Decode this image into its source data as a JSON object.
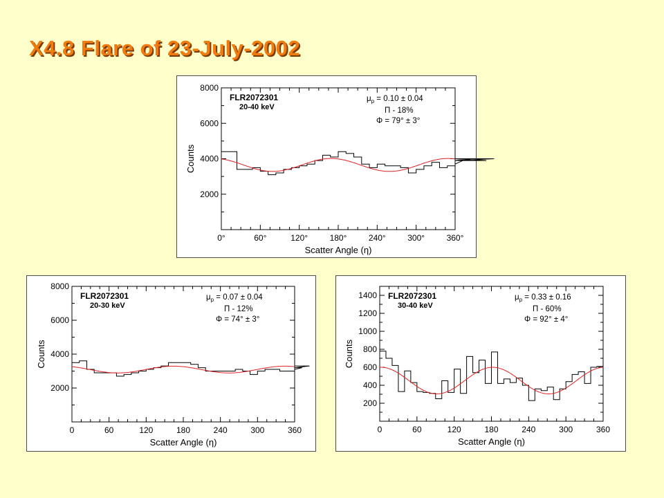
{
  "slide": {
    "title": "X4.8 Flare of 23-July-2002"
  },
  "chart_data": [
    {
      "id": "top",
      "type": "line",
      "run_label": "FLR2072301",
      "energy_label": "20-40 keV",
      "annotations": {
        "mu": "= 0.10 ± 0.04",
        "pi": "- 18%",
        "phi": "= 79° ± 3°"
      },
      "xlabel": "Scatter Angle (η)",
      "ylabel": "Counts",
      "xlim": [
        0,
        360
      ],
      "ylim": [
        0,
        8000
      ],
      "xticks": [
        0,
        60,
        120,
        180,
        240,
        300,
        360
      ],
      "xtick_labels": [
        "0°",
        "60°",
        "120°",
        "180°",
        "240°",
        "300°",
        "360°"
      ],
      "yticks": [
        2000,
        4000,
        6000,
        8000
      ],
      "ytick_labels": [
        "2000",
        "4000",
        "6000",
        "8000"
      ],
      "bin_width": 12,
      "series": [
        {
          "type": "histogram",
          "values": [
            4400,
            4400,
            3400,
            3400,
            3500,
            3300,
            3100,
            3200,
            3400,
            3500,
            3600,
            3700,
            3900,
            4200,
            4100,
            4400,
            4300,
            4100,
            3700,
            3500,
            3700,
            3600,
            3600,
            3500,
            3200,
            3400,
            3600,
            3800,
            3500,
            3600,
            3700,
            3900,
            4000,
            4000,
            3900,
            4000
          ]
        },
        {
          "type": "fit",
          "mean": 3650,
          "amplitude": 365,
          "phase_deg": 169
        }
      ]
    },
    {
      "id": "bottom-left",
      "type": "line",
      "run_label": "FLR2072301",
      "energy_label": "20-30 keV",
      "annotations": {
        "mu": "= 0.07 ± 0.04",
        "pi": "- 12%",
        "phi": "= 74° ± 3°"
      },
      "xlabel": "Scatter Angle (η)",
      "ylabel": "Counts",
      "xlim": [
        0,
        360
      ],
      "ylim": [
        0,
        8000
      ],
      "xticks": [
        0,
        60,
        120,
        180,
        240,
        300,
        360
      ],
      "xtick_labels": [
        "0",
        "60",
        "120",
        "180",
        "240",
        "300",
        "360"
      ],
      "yticks": [
        2000,
        4000,
        6000,
        8000
      ],
      "ytick_labels": [
        "2000",
        "4000",
        "6000",
        "8000"
      ],
      "bin_width": 12,
      "series": [
        {
          "type": "histogram",
          "values": [
            3500,
            3600,
            3100,
            2900,
            2900,
            2900,
            2700,
            2800,
            2900,
            3000,
            3100,
            3200,
            3300,
            3500,
            3500,
            3500,
            3400,
            3200,
            3000,
            3000,
            3000,
            3000,
            3100,
            3000,
            2800,
            3000,
            3100,
            3100,
            3000,
            3000,
            3100,
            3200,
            3300
          ]
        },
        {
          "type": "fit",
          "mean": 3090,
          "amplitude": 200,
          "phase_deg": 164
        }
      ]
    },
    {
      "id": "bottom-right",
      "type": "line",
      "run_label": "FLR2072301",
      "energy_label": "30-40 keV",
      "annotations": {
        "mu": "= 0.33 ± 0.16",
        "pi": "- 60%",
        "phi": "= 92° ± 4°"
      },
      "xlabel": "Scatter Angle (η)",
      "ylabel": "Counts",
      "xlim": [
        0,
        360
      ],
      "ylim": [
        0,
        1500
      ],
      "xticks": [
        0,
        60,
        120,
        180,
        240,
        300,
        360
      ],
      "xtick_labels": [
        "0",
        "60",
        "120",
        "180",
        "240",
        "300",
        "360"
      ],
      "yticks": [
        200,
        400,
        600,
        800,
        1000,
        1200,
        1400
      ],
      "ytick_labels": [
        "200",
        "400",
        "600",
        "800",
        "1000",
        "1200",
        "1400"
      ],
      "bin_width": 10,
      "series": [
        {
          "type": "histogram",
          "values": [
            780,
            700,
            620,
            330,
            560,
            430,
            330,
            320,
            310,
            250,
            450,
            320,
            580,
            310,
            720,
            540,
            680,
            420,
            770,
            420,
            470,
            430,
            480,
            400,
            230,
            360,
            340,
            380,
            240,
            360,
            440,
            520,
            550,
            420,
            600,
            610
          ]
        },
        {
          "type": "fit",
          "mean": 452,
          "amplitude": 148,
          "phase_deg": 182
        }
      ]
    }
  ]
}
